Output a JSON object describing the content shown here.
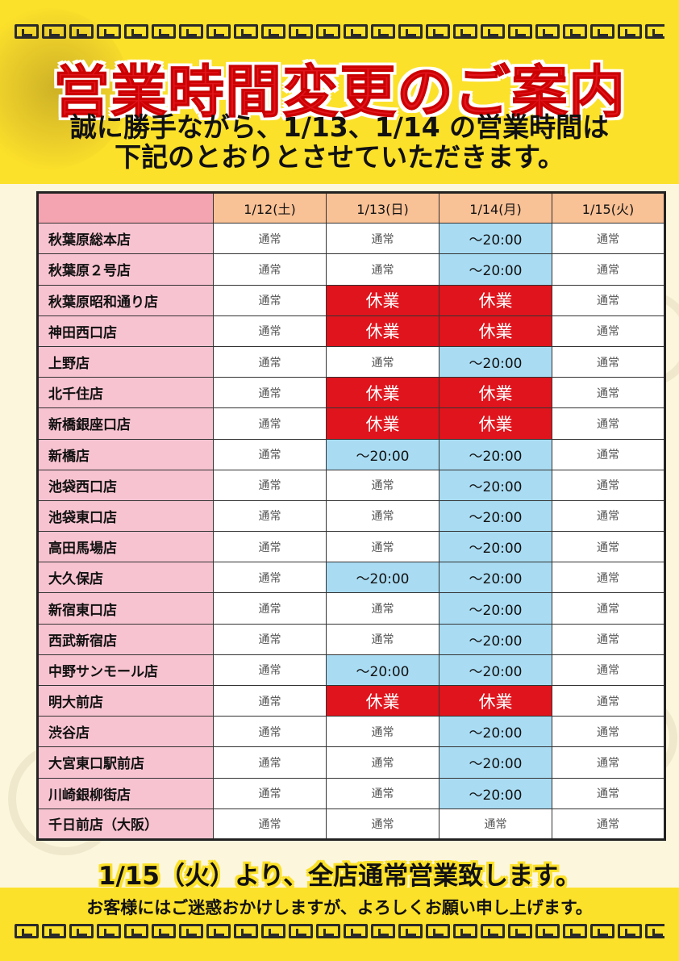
{
  "title": "営業時間変更のご案内",
  "subtitle": {
    "line1": "誠に勝手ながら、1/13、1/14 の営業時間は",
    "line2": "下記のとおりとさせていただきます。"
  },
  "columns": [
    "1/12(土)",
    "1/13(日)",
    "1/14(月)",
    "1/15(火)"
  ],
  "rows": [
    {
      "store": "秋葉原総本店",
      "cells": [
        "通常",
        "通常",
        "～20:00",
        "通常"
      ]
    },
    {
      "store": "秋葉原２号店",
      "cells": [
        "通常",
        "通常",
        "～20:00",
        "通常"
      ]
    },
    {
      "store": "秋葉原昭和通り店",
      "cells": [
        "通常",
        "休業",
        "休業",
        "通常"
      ]
    },
    {
      "store": "神田西口店",
      "cells": [
        "通常",
        "休業",
        "休業",
        "通常"
      ]
    },
    {
      "store": "上野店",
      "cells": [
        "通常",
        "通常",
        "～20:00",
        "通常"
      ]
    },
    {
      "store": "北千住店",
      "cells": [
        "通常",
        "休業",
        "休業",
        "通常"
      ]
    },
    {
      "store": "新橋銀座口店",
      "cells": [
        "通常",
        "休業",
        "休業",
        "通常"
      ]
    },
    {
      "store": "新橋店",
      "cells": [
        "通常",
        "～20:00",
        "～20:00",
        "通常"
      ]
    },
    {
      "store": "池袋西口店",
      "cells": [
        "通常",
        "通常",
        "～20:00",
        "通常"
      ]
    },
    {
      "store": "池袋東口店",
      "cells": [
        "通常",
        "通常",
        "～20:00",
        "通常"
      ]
    },
    {
      "store": "高田馬場店",
      "cells": [
        "通常",
        "通常",
        "～20:00",
        "通常"
      ]
    },
    {
      "store": "大久保店",
      "cells": [
        "通常",
        "～20:00",
        "～20:00",
        "通常"
      ]
    },
    {
      "store": "新宿東口店",
      "cells": [
        "通常",
        "通常",
        "～20:00",
        "通常"
      ]
    },
    {
      "store": "西武新宿店",
      "cells": [
        "通常",
        "通常",
        "～20:00",
        "通常"
      ]
    },
    {
      "store": "中野サンモール店",
      "cells": [
        "通常",
        "～20:00",
        "～20:00",
        "通常"
      ]
    },
    {
      "store": "明大前店",
      "cells": [
        "通常",
        "休業",
        "休業",
        "通常"
      ]
    },
    {
      "store": "渋谷店",
      "cells": [
        "通常",
        "通常",
        "～20:00",
        "通常"
      ]
    },
    {
      "store": "大宮東口駅前店",
      "cells": [
        "通常",
        "通常",
        "～20:00",
        "通常"
      ]
    },
    {
      "store": "川崎銀柳街店",
      "cells": [
        "通常",
        "通常",
        "～20:00",
        "通常"
      ]
    },
    {
      "store": "千日前店（大阪）",
      "cells": [
        "通常",
        "通常",
        "通常",
        "通常"
      ]
    }
  ],
  "footer": {
    "announcement": "1/15（火）より、全店通常営業致します。",
    "closing": "お客様にはご迷惑おかけしますが、よろしくお願い申し上げます。"
  },
  "colors": {
    "yellow": "#fce12a",
    "red": "#e0141c",
    "blue": "#a9dcf3",
    "pink": "#f8c3d1",
    "peach": "#f9c196"
  },
  "icons": [
    "fret-border-pattern",
    "cloud-decoration"
  ]
}
